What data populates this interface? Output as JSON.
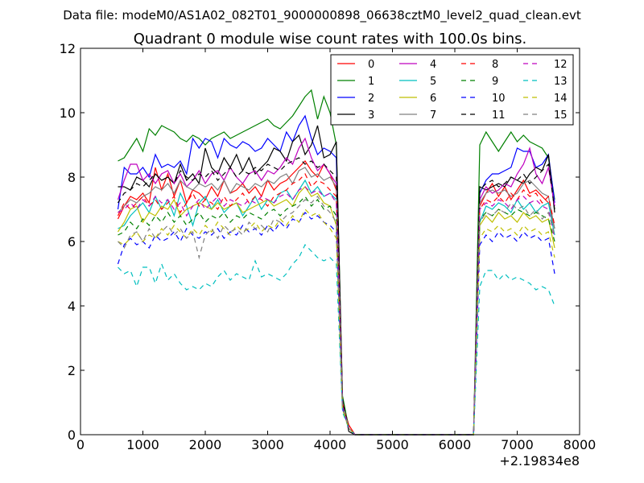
{
  "figure": {
    "suptitle": "Data file: modeM0/AS1A02_082T01_9000000898_06638cztM0_level2_quad_clean.evt"
  },
  "chart_data": {
    "type": "line",
    "title": "Quadrant 0 module wise count rates with 100.0s bins.",
    "xlabel": "",
    "ylabel": "",
    "x_offset_label": "+2.19834e8",
    "xlim": [
      0,
      8000
    ],
    "ylim": [
      0,
      12
    ],
    "xticks": [
      0,
      1000,
      2000,
      3000,
      4000,
      5000,
      6000,
      7000,
      8000
    ],
    "yticks": [
      0,
      2,
      4,
      6,
      8,
      10,
      12
    ],
    "grid": false,
    "legend": {
      "position": "top-right",
      "columns": 4
    },
    "x": [
      600,
      700,
      800,
      900,
      1000,
      1100,
      1200,
      1300,
      1400,
      1500,
      1600,
      1700,
      1800,
      1900,
      2000,
      2100,
      2200,
      2300,
      2400,
      2500,
      2600,
      2700,
      2800,
      2900,
      3000,
      3100,
      3200,
      3300,
      3400,
      3500,
      3600,
      3700,
      3800,
      3900,
      4000,
      4100,
      4200,
      4300,
      4400,
      4500,
      4600,
      4700,
      4800,
      4900,
      5000,
      5100,
      5200,
      5300,
      5400,
      5500,
      5600,
      5700,
      5800,
      5900,
      6000,
      6100,
      6200,
      6300,
      6400,
      6500,
      6600,
      6700,
      6800,
      6900,
      7000,
      7100,
      7200,
      7300,
      7400,
      7500,
      7600
    ],
    "series": [
      {
        "name": "0",
        "color": "#ff0000",
        "dash": "solid",
        "values": [
          6.7,
          7.1,
          7.4,
          7.3,
          7.5,
          7.2,
          8.3,
          7.6,
          8.1,
          7.4,
          7.9,
          7.2,
          7.6,
          7.5,
          7.3,
          7.7,
          7.4,
          7.9,
          7.5,
          7.6,
          7.8,
          7.5,
          7.7,
          7.4,
          7.9,
          7.6,
          7.8,
          7.9,
          8.1,
          8.3,
          8.5,
          8.2,
          8.0,
          8.4,
          8.1,
          7.6,
          1.0,
          0.3,
          0,
          0,
          0,
          0,
          0,
          0,
          0,
          0,
          0,
          0,
          0,
          0,
          0,
          0,
          0,
          0,
          0,
          0,
          0,
          0,
          7.1,
          7.5,
          7.8,
          7.4,
          7.7,
          7.3,
          7.6,
          7.9,
          7.5,
          7.6,
          7.4,
          7.2,
          6.4
        ]
      },
      {
        "name": "1",
        "color": "#008000",
        "dash": "solid",
        "values": [
          8.5,
          8.6,
          8.9,
          9.2,
          8.8,
          9.5,
          9.3,
          9.6,
          9.5,
          9.4,
          9.2,
          9.1,
          9.3,
          9.2,
          9.0,
          9.2,
          9.3,
          9.4,
          9.2,
          9.3,
          9.4,
          9.5,
          9.6,
          9.7,
          9.8,
          9.6,
          9.5,
          9.7,
          9.9,
          10.2,
          10.5,
          10.7,
          9.8,
          10.5,
          10.0,
          9.0,
          1.2,
          0.2,
          0,
          0,
          0,
          0,
          0,
          0,
          0,
          0,
          0,
          0,
          0,
          0,
          0,
          0,
          0,
          0,
          0,
          0,
          0,
          0,
          9.0,
          9.4,
          9.1,
          8.8,
          9.1,
          9.4,
          9.1,
          9.3,
          9.1,
          9.0,
          8.9,
          8.6,
          7.3
        ]
      },
      {
        "name": "2",
        "color": "#0000ff",
        "dash": "solid",
        "values": [
          7.0,
          8.3,
          8.1,
          8.1,
          8.3,
          8.0,
          8.7,
          8.3,
          8.4,
          8.3,
          8.5,
          8.1,
          9.2,
          8.9,
          9.2,
          9.1,
          8.6,
          9.2,
          9.0,
          8.9,
          9.1,
          9.0,
          8.8,
          8.9,
          9.2,
          9.0,
          8.8,
          9.4,
          9.1,
          9.6,
          9.9,
          9.2,
          8.7,
          8.9,
          8.8,
          8.6,
          0.9,
          0.2,
          0,
          0,
          0,
          0,
          0,
          0,
          0,
          0,
          0,
          0,
          0,
          0,
          0,
          0,
          0,
          0,
          0,
          0,
          0,
          0,
          7.5,
          7.9,
          8.1,
          8.1,
          8.2,
          8.3,
          8.9,
          8.8,
          8.8,
          8.3,
          8.4,
          8.7,
          7.2
        ]
      },
      {
        "name": "3",
        "color": "#000000",
        "dash": "solid",
        "values": [
          7.7,
          7.7,
          7.6,
          8.0,
          7.9,
          7.7,
          8.1,
          7.9,
          8.0,
          7.8,
          8.4,
          7.9,
          8.1,
          7.8,
          8.9,
          8.3,
          8.1,
          8.6,
          8.3,
          8.7,
          8.2,
          8.6,
          8.1,
          8.3,
          8.5,
          8.9,
          8.8,
          8.5,
          9.1,
          9.3,
          8.7,
          9.0,
          9.6,
          8.6,
          8.7,
          9.1,
          1.1,
          0.1,
          0,
          0,
          0,
          0,
          0,
          0,
          0,
          0,
          0,
          0,
          0,
          0,
          0,
          0,
          0,
          0,
          0,
          0,
          0,
          0,
          7.7,
          7.6,
          7.7,
          7.8,
          7.7,
          8.0,
          7.9,
          7.8,
          8.1,
          8.3,
          8.2,
          8.7,
          6.9
        ]
      },
      {
        "name": "4",
        "color": "#bf00bf",
        "dash": "solid",
        "values": [
          7.3,
          7.9,
          8.4,
          8.4,
          7.9,
          8.1,
          7.8,
          8.1,
          8.2,
          7.8,
          8.1,
          7.7,
          7.9,
          8.2,
          7.8,
          8.1,
          8.2,
          7.9,
          8.3,
          8.0,
          7.8,
          8.1,
          8.2,
          7.9,
          8.2,
          8.1,
          8.3,
          8.6,
          8.4,
          8.9,
          9.2,
          8.6,
          8.2,
          8.4,
          8.1,
          7.8,
          1.0,
          0.2,
          0,
          0,
          0,
          0,
          0,
          0,
          0,
          0,
          0,
          0,
          0,
          0,
          0,
          0,
          0,
          0,
          0,
          0,
          0,
          0,
          7.3,
          7.7,
          7.5,
          7.6,
          7.8,
          7.7,
          8.1,
          8.4,
          8.9,
          8.1,
          7.8,
          8.3,
          7.1
        ]
      },
      {
        "name": "5",
        "color": "#00bfbf",
        "dash": "solid",
        "values": [
          6.4,
          6.5,
          6.8,
          7.0,
          7.2,
          6.9,
          7.4,
          7.0,
          7.3,
          6.8,
          7.5,
          7.1,
          6.5,
          7.2,
          7.4,
          7.0,
          7.3,
          6.9,
          7.1,
          7.2,
          6.8,
          7.1,
          7.4,
          7.0,
          7.3,
          7.2,
          7.5,
          7.6,
          7.3,
          7.6,
          7.9,
          7.5,
          7.7,
          7.4,
          7.5,
          7.3,
          0.9,
          0.2,
          0,
          0,
          0,
          0,
          0,
          0,
          0,
          0,
          0,
          0,
          0,
          0,
          0,
          0,
          0,
          0,
          0,
          0,
          0,
          0,
          6.6,
          7.1,
          7.0,
          7.2,
          7.1,
          6.9,
          7.3,
          7.0,
          7.2,
          6.9,
          7.1,
          7.2,
          6.2
        ]
      },
      {
        "name": "6",
        "color": "#bfbf00",
        "dash": "solid",
        "values": [
          6.3,
          6.6,
          7.0,
          7.1,
          6.6,
          6.9,
          6.8,
          7.1,
          7.0,
          7.3,
          6.8,
          7.0,
          7.1,
          7.2,
          7.1,
          7.0,
          7.2,
          7.0,
          7.1,
          7.2,
          6.9,
          7.0,
          7.1,
          7.2,
          7.3,
          7.1,
          7.2,
          7.3,
          7.1,
          7.5,
          7.7,
          7.4,
          7.5,
          7.2,
          7.1,
          6.5,
          0.8,
          0.2,
          0,
          0,
          0,
          0,
          0,
          0,
          0,
          0,
          0,
          0,
          0,
          0,
          0,
          0,
          0,
          0,
          0,
          0,
          0,
          0,
          6.5,
          6.8,
          6.6,
          6.9,
          6.7,
          6.8,
          6.6,
          6.9,
          6.7,
          6.8,
          6.6,
          6.7,
          5.8
        ]
      },
      {
        "name": "7",
        "color": "#808080",
        "dash": "solid",
        "values": [
          6.9,
          7.1,
          7.3,
          7.2,
          7.4,
          7.5,
          7.7,
          7.6,
          7.8,
          7.5,
          7.9,
          7.7,
          7.6,
          7.8,
          7.7,
          7.8,
          7.6,
          7.9,
          7.5,
          7.8,
          7.7,
          7.6,
          7.8,
          7.7,
          7.9,
          7.8,
          8.0,
          8.1,
          7.8,
          8.2,
          8.3,
          8.0,
          8.1,
          7.9,
          8.0,
          7.7,
          1.0,
          0.2,
          0,
          0,
          0,
          0,
          0,
          0,
          0,
          0,
          0,
          0,
          0,
          0,
          0,
          0,
          0,
          0,
          0,
          0,
          0,
          0,
          7.2,
          7.5,
          7.6,
          7.5,
          7.6,
          7.4,
          7.5,
          7.8,
          7.9,
          7.7,
          7.5,
          7.4,
          6.4
        ]
      },
      {
        "name": "8",
        "color": "#ff0000",
        "dash": "dashed",
        "values": [
          6.8,
          7.2,
          7.0,
          7.2,
          7.4,
          7.1,
          7.3,
          7.0,
          7.2,
          7.4,
          6.9,
          7.2,
          7.5,
          7.1,
          7.3,
          7.2,
          7.0,
          7.4,
          7.1,
          7.3,
          7.5,
          7.2,
          7.4,
          7.3,
          7.1,
          7.4,
          7.5,
          7.6,
          7.8,
          7.9,
          8.1,
          7.7,
          7.9,
          7.8,
          7.6,
          7.4,
          1.0,
          0.2,
          0,
          0,
          0,
          0,
          0,
          0,
          0,
          0,
          0,
          0,
          0,
          0,
          0,
          0,
          0,
          0,
          0,
          0,
          0,
          0,
          7.0,
          7.3,
          7.2,
          7.4,
          7.2,
          7.5,
          7.3,
          7.6,
          7.4,
          7.5,
          7.2,
          7.4,
          6.5
        ]
      },
      {
        "name": "9",
        "color": "#008000",
        "dash": "dashed",
        "values": [
          6.2,
          6.3,
          6.6,
          6.4,
          6.7,
          6.5,
          6.8,
          6.6,
          6.9,
          6.6,
          6.8,
          6.5,
          6.7,
          6.9,
          6.6,
          6.8,
          6.7,
          6.9,
          6.6,
          6.8,
          6.7,
          6.9,
          6.8,
          6.7,
          6.9,
          7.0,
          6.8,
          7.0,
          7.1,
          7.2,
          7.4,
          7.1,
          7.3,
          7.0,
          7.1,
          6.8,
          0.9,
          0.2,
          0,
          0,
          0,
          0,
          0,
          0,
          0,
          0,
          0,
          0,
          0,
          0,
          0,
          0,
          0,
          0,
          0,
          0,
          0,
          0,
          6.7,
          6.9,
          6.8,
          7.0,
          6.9,
          6.8,
          7.0,
          6.9,
          6.8,
          6.9,
          6.8,
          6.7,
          6.0
        ]
      },
      {
        "name": "10",
        "color": "#0000ff",
        "dash": "dashed",
        "values": [
          5.3,
          5.9,
          6.1,
          5.9,
          6.0,
          5.8,
          6.2,
          6.0,
          6.1,
          6.3,
          6.0,
          6.4,
          6.2,
          6.1,
          6.3,
          6.2,
          6.4,
          6.1,
          6.3,
          6.2,
          6.5,
          6.3,
          6.4,
          6.2,
          6.5,
          6.3,
          6.6,
          6.4,
          6.7,
          6.6,
          6.9,
          6.7,
          6.8,
          6.6,
          6.5,
          6.3,
          0.8,
          0.2,
          0,
          0,
          0,
          0,
          0,
          0,
          0,
          0,
          0,
          0,
          0,
          0,
          0,
          0,
          0,
          0,
          0,
          0,
          0,
          0,
          5.9,
          6.2,
          6.0,
          6.3,
          6.1,
          6.2,
          6.0,
          6.3,
          6.1,
          6.2,
          6.0,
          6.1,
          5.0
        ]
      },
      {
        "name": "11",
        "color": "#000000",
        "dash": "dashed",
        "values": [
          7.2,
          7.5,
          7.6,
          7.8,
          7.7,
          7.9,
          8.1,
          7.9,
          8.0,
          7.8,
          8.2,
          8.0,
          7.9,
          8.1,
          8.0,
          8.2,
          7.9,
          8.1,
          8.3,
          8.0,
          8.2,
          8.1,
          8.3,
          8.2,
          8.4,
          8.3,
          8.2,
          8.4,
          8.5,
          8.6,
          8.4,
          8.5,
          8.3,
          8.4,
          8.2,
          8.0,
          1.0,
          0.2,
          0,
          0,
          0,
          0,
          0,
          0,
          0,
          0,
          0,
          0,
          0,
          0,
          0,
          0,
          0,
          0,
          0,
          0,
          0,
          0,
          7.6,
          7.8,
          7.9,
          7.7,
          7.8,
          8.0,
          7.9,
          8.1,
          7.8,
          8.0,
          8.2,
          8.4,
          7.0
        ]
      },
      {
        "name": "12",
        "color": "#bf00bf",
        "dash": "dashed",
        "values": [
          6.9,
          7.0,
          7.2,
          7.0,
          7.3,
          7.1,
          7.4,
          7.2,
          7.3,
          7.0,
          7.2,
          6.8,
          7.1,
          7.3,
          7.0,
          7.2,
          7.4,
          7.1,
          7.3,
          7.2,
          7.1,
          7.3,
          7.2,
          7.4,
          7.3,
          7.2,
          7.4,
          7.5,
          7.3,
          7.6,
          7.7,
          7.5,
          7.6,
          7.4,
          7.5,
          7.2,
          0.9,
          0.2,
          0,
          0,
          0,
          0,
          0,
          0,
          0,
          0,
          0,
          0,
          0,
          0,
          0,
          0,
          0,
          0,
          0,
          0,
          0,
          0,
          7.0,
          7.2,
          7.1,
          7.3,
          7.2,
          7.0,
          7.3,
          7.4,
          7.2,
          7.3,
          7.1,
          7.0,
          6.1
        ]
      },
      {
        "name": "13",
        "color": "#00bfbf",
        "dash": "dashed",
        "values": [
          5.2,
          5.0,
          5.1,
          4.6,
          5.2,
          5.2,
          4.7,
          5.3,
          4.8,
          5.0,
          4.7,
          4.5,
          4.6,
          4.5,
          4.7,
          4.6,
          4.9,
          5.1,
          4.8,
          5.0,
          4.9,
          4.8,
          5.4,
          4.9,
          5.0,
          4.9,
          4.8,
          5.0,
          5.3,
          5.5,
          5.9,
          5.7,
          5.5,
          5.4,
          5.5,
          5.3,
          0.7,
          0.2,
          0,
          0,
          0,
          0,
          0,
          0,
          0,
          0,
          0,
          0,
          0,
          0,
          0,
          0,
          0,
          0,
          0,
          0,
          0,
          0,
          4.6,
          5.1,
          5.1,
          4.8,
          5.0,
          4.8,
          4.9,
          4.8,
          4.7,
          4.5,
          4.6,
          4.5,
          4.0
        ]
      },
      {
        "name": "14",
        "color": "#bfbf00",
        "dash": "dashed",
        "values": [
          6.0,
          5.9,
          6.1,
          6.3,
          6.0,
          6.2,
          6.1,
          6.4,
          6.2,
          6.5,
          6.3,
          6.1,
          6.4,
          6.2,
          6.5,
          6.3,
          6.6,
          6.4,
          6.2,
          6.5,
          6.3,
          6.4,
          6.6,
          6.3,
          6.5,
          6.4,
          6.7,
          6.5,
          6.8,
          6.6,
          7.0,
          6.8,
          6.9,
          6.6,
          6.4,
          6.1,
          0.8,
          0.2,
          0,
          0,
          0,
          0,
          0,
          0,
          0,
          0,
          0,
          0,
          0,
          0,
          0,
          0,
          0,
          0,
          0,
          0,
          0,
          0,
          6.1,
          6.4,
          6.3,
          6.5,
          6.3,
          6.4,
          6.2,
          6.5,
          6.3,
          6.4,
          6.2,
          6.3,
          5.5
        ]
      },
      {
        "name": "15",
        "color": "#808080",
        "dash": "dashed",
        "values": [
          6.0,
          5.8,
          6.2,
          6.3,
          6.0,
          6.4,
          6.1,
          6.3,
          6.5,
          6.2,
          6.4,
          6.1,
          6.3,
          5.5,
          6.2,
          6.4,
          6.1,
          6.5,
          6.3,
          6.4,
          6.2,
          6.6,
          6.4,
          6.5,
          6.3,
          6.7,
          6.6,
          6.8,
          6.9,
          7.1,
          7.3,
          7.2,
          7.4,
          7.1,
          6.9,
          6.6,
          0.9,
          0.2,
          0,
          0,
          0,
          0,
          0,
          0,
          0,
          0,
          0,
          0,
          0,
          0,
          0,
          0,
          0,
          0,
          0,
          0,
          0,
          0,
          6.6,
          6.9,
          6.8,
          7.0,
          6.9,
          7.2,
          7.0,
          7.1,
          6.8,
          7.0,
          6.7,
          6.9,
          6.2
        ]
      }
    ]
  }
}
